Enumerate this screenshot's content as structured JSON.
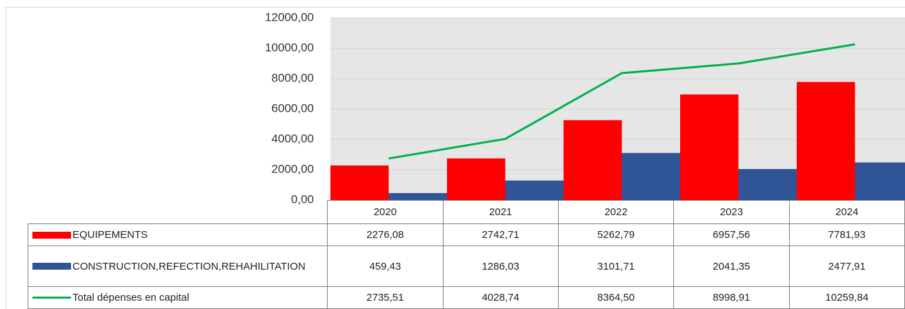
{
  "chart_data": {
    "type": "bar",
    "categories": [
      "2020",
      "2021",
      "2022",
      "2023",
      "2024"
    ],
    "series": [
      {
        "name": "EQUIPEMENTS",
        "type": "bar",
        "color": "#ff0000",
        "values": [
          2276.08,
          2742.71,
          5262.79,
          6957.56,
          7781.93
        ],
        "value_labels": [
          "2276,08",
          "2742,71",
          "5262,79",
          "6957,56",
          "7781,93"
        ]
      },
      {
        "name": "CONSTRUCTION,REFECTION,REHAHILITATION",
        "type": "bar",
        "color": "#2f5597",
        "values": [
          459.43,
          1286.03,
          3101.71,
          2041.35,
          2477.91
        ],
        "value_labels": [
          "459,43",
          "1286,03",
          "3101,71",
          "2041,35",
          "2477,91"
        ]
      },
      {
        "name": "Total dépenses en capital",
        "type": "line",
        "color": "#00b050",
        "values": [
          2735.51,
          4028.74,
          8364.5,
          8998.91,
          10259.84
        ],
        "value_labels": [
          "2735,51",
          "4028,74",
          "8364,50",
          "8998,91",
          "10259,84"
        ]
      }
    ],
    "ylim": [
      0,
      12000
    ],
    "yticks": [
      {
        "value": 0,
        "label": "0,00"
      },
      {
        "value": 2000,
        "label": "2000,00"
      },
      {
        "value": 4000,
        "label": "4000,00"
      },
      {
        "value": 6000,
        "label": "6000,00"
      },
      {
        "value": 8000,
        "label": "8000,00"
      },
      {
        "value": 10000,
        "label": "10000,00"
      },
      {
        "value": 12000,
        "label": "12000,00"
      }
    ],
    "grid": true
  }
}
